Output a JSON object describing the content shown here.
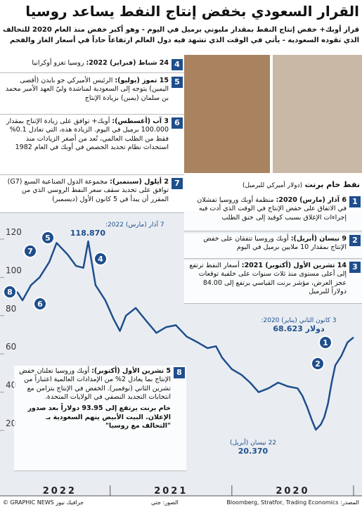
{
  "header": {
    "title": "القرار السعودي بخفض إنتاج النفط يساعد روسيا",
    "subtitle": "قرار أوبك+ خفض إنتاج النفط بمقدار مليوني برميل في اليوم - وهو أكبر خفض منذ العام 2020 للتحالف الذي تقوده السعودية - يأتي في الوقت الذي تشهد فيه دول العالم ارتفاعاً حاداً في أسعار الغاز والفحم"
  },
  "events": [
    {
      "number": 1,
      "date": "6 آذار (مارس) 2020:",
      "text": "منظمة أوبك وروسيا تفشلان في الاتفاق على خفض الإنتاج في الوقت الذي أدت فيه إجراءات الإغلاق بسبب كوفيد إلى خنق الطلب"
    },
    {
      "number": 2,
      "date": "9 نيسان (أبريل):",
      "text": "أوبك وروسيا تتفقان على خفض الإنتاج بمقدار 10 ملايين برميل في اليوم"
    },
    {
      "number": 3,
      "date": "14 تشرين الأول (أكتوبر) 2021:",
      "text": "أسعار النفط ترتفع إلى أعلى مستوى منذ ثلاث سنوات على خلفية توقعات عجز العرض، مؤشر برنت القياسي يرتفع إلى 84.00 دولاراً للبرميل"
    },
    {
      "number": 4,
      "date": "24 شباط (فبراير) 2022:",
      "text": "روسيا تغزو أوكرانيا"
    },
    {
      "number": 5,
      "date": "15 تموز (يوليو):",
      "text": "الرئيس الأميركي جو بايدن (أقصى اليمين) يتوجه إلى السعودية لمناشدة وليّ العهد الأمير محمد بن سلمان (يمين) بزيادة الإنتاج"
    },
    {
      "number": 6,
      "date": "3 آب (أغسطس):",
      "text": "أوبك+ توافق على زيادة الإنتاج بمقدار 100.000 برميل في اليوم. الزيادة هذه، التي تعادل 0.1% فقط من الطلب العالمي، تُعد من أصغر الزيادات منذ استحداث نظام تحديد الحصص في أوبك في العام 1982"
    },
    {
      "number": 7,
      "date": "2 أيلول (سبتمبر):",
      "text": "مجموعة الدول الصناعية السبع (G7) توافق على تحديد سقف سعر النفط الروسي الذي من المقرر أن يبدأ في 5 كانون الأول (ديسمبر)"
    },
    {
      "number": 8,
      "date": "5 تشرين الأول (أكتوبر):",
      "text": "أوبك وروسيا تعلنان خفض الإنتاج بما يعادل 2% من الإمدادات العالمية اعتباراً من تشرين الثاني (نوفمبر). الخفض في الإنتاج يتزامن مع انتخابات التجديد النصفي في الولايات المتحدة.",
      "note": "خام برنت يرتفع إلى 93.95 دولاراً بعد صدور الإعلان. البيت الأبيض يتهم السعودية بـ \"التحالف مع روسيا\""
    }
  ],
  "chart_data": {
    "type": "line",
    "title": "نفط خام برنت",
    "subtitle": "(دولار أميركي للبرميل)",
    "x": [
      2020.0,
      2020.05,
      2020.1,
      2020.15,
      2020.18,
      2020.21,
      2020.24,
      2020.27,
      2020.31,
      2020.34,
      2020.38,
      2020.42,
      2020.46,
      2020.54,
      2020.62,
      2020.7,
      2020.78,
      2020.85,
      2020.92,
      2021.0,
      2021.08,
      2021.13,
      2021.2,
      2021.28,
      2021.37,
      2021.46,
      2021.54,
      2021.62,
      2021.7,
      2021.79,
      2021.87,
      2021.92,
      2021.97,
      2022.04,
      2022.12,
      2022.18,
      2022.22,
      2022.28,
      2022.35,
      2022.44,
      2022.5,
      2022.58,
      2022.65,
      2022.72,
      2022.76,
      2022.8
    ],
    "series": [
      {
        "name": "Brent",
        "color": "#1f4e8c",
        "values": [
          68.623,
          66,
          59,
          54,
          45,
          34,
          27,
          23,
          20.37,
          25,
          32,
          38,
          42,
          43,
          45,
          42,
          40,
          45,
          49,
          52,
          58,
          64,
          63,
          66,
          69,
          75,
          74,
          71,
          77,
          84,
          80,
          72,
          78,
          88,
          96,
          118.87,
          105,
          106,
          112,
          118,
          108,
          100,
          96,
          88,
          92,
          93.95
        ]
      }
    ],
    "xlim": [
      2020,
      2022.83
    ],
    "xticks": [
      2020,
      2021,
      2022
    ],
    "x_reversed": true,
    "ylim": [
      20,
      120
    ],
    "yticks": [
      20,
      40,
      60,
      80,
      100,
      120
    ],
    "grid": false,
    "annotations": [
      {
        "text": "7 آذار (مارس) 2022:",
        "value_label": "118.870"
      },
      {
        "text": "3 كانون الثاني (يناير) 2020:",
        "value_label": "68.623 دولار"
      },
      {
        "text": "22 نيسان (أبريل)",
        "value_label": "20.370"
      }
    ]
  },
  "footer": {
    "source": "المصدر: Bloomberg, Stratfor, Trading Economics",
    "photos": "الصور: جتي",
    "credit": "© GRAPHIC NEWS جرافيك نيوز"
  }
}
